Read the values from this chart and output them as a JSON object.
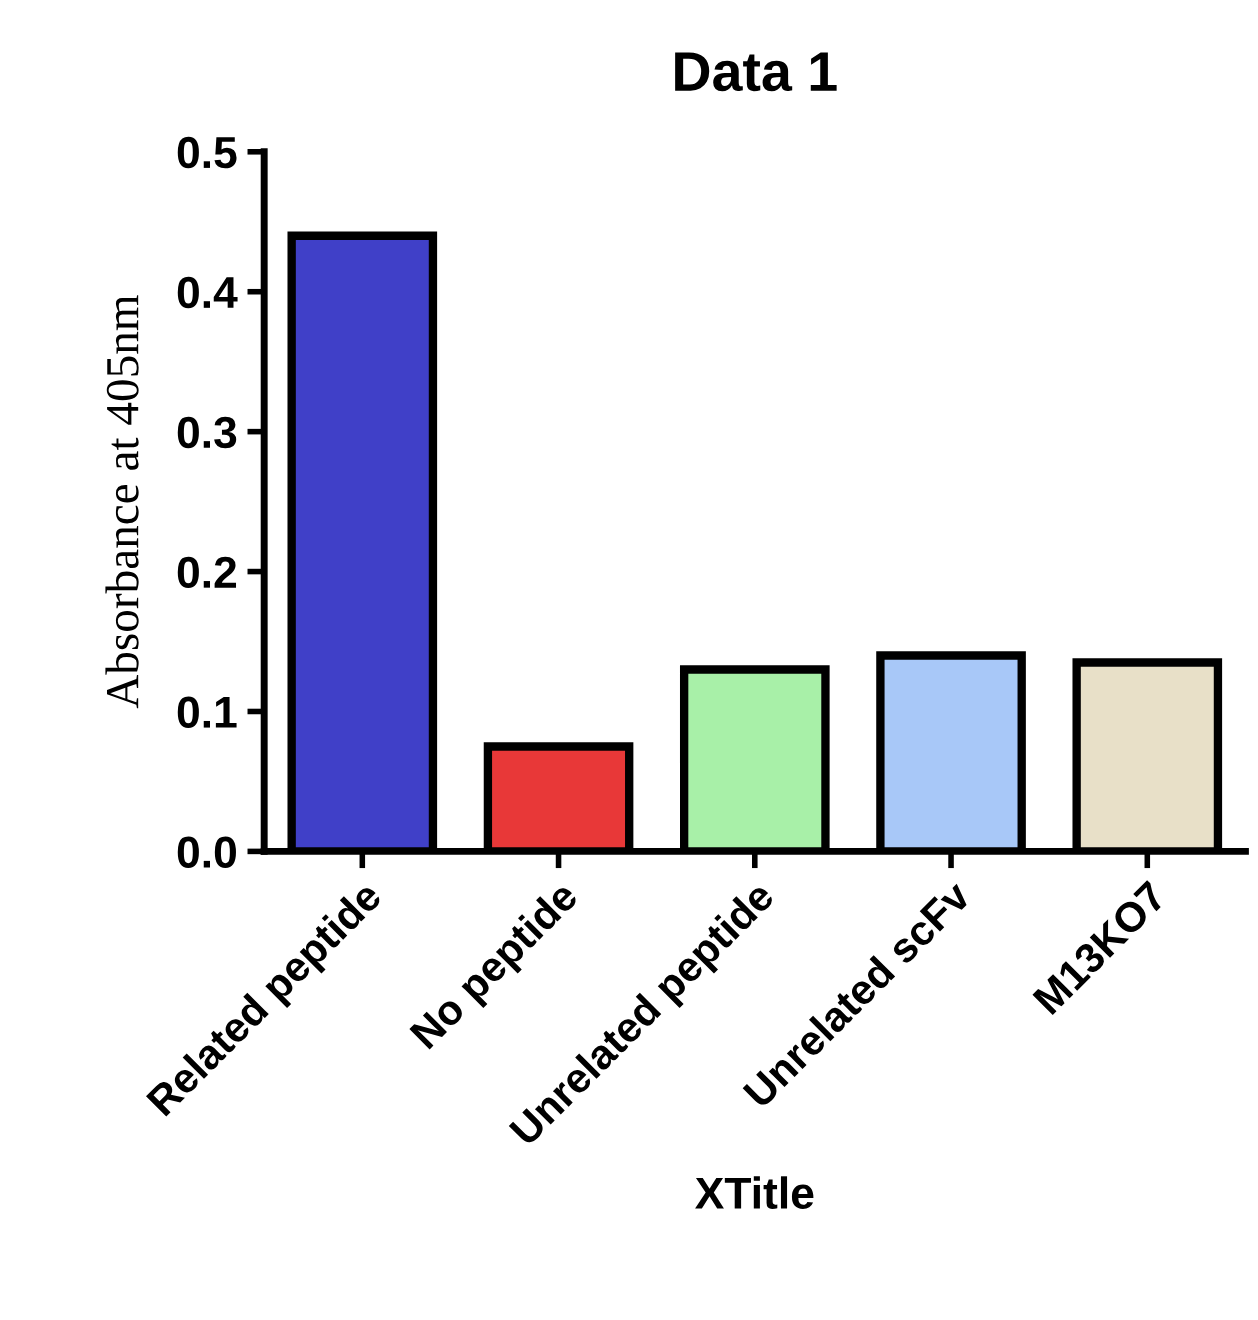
{
  "chart_data": {
    "type": "bar",
    "title": "Data 1",
    "xlabel": "XTitle",
    "ylabel": "Absorbance at 405nm",
    "categories": [
      "Related peptide",
      "No peptide",
      "Unrelated peptide",
      "Unrelated scFv",
      "M13KO7"
    ],
    "values": [
      0.44,
      0.075,
      0.13,
      0.14,
      0.135
    ],
    "colors": [
      "#4040c8",
      "#e83838",
      "#a8f0a8",
      "#a8c8f8",
      "#e8e0c8"
    ],
    "ylim": [
      0,
      0.5
    ],
    "yticks": [
      {
        "value": 0,
        "label": "0.0"
      },
      {
        "value": 0.1,
        "label": "0.1"
      },
      {
        "value": 0.2,
        "label": "0.2"
      },
      {
        "value": 0.3,
        "label": "0.3"
      },
      {
        "value": 0.4,
        "label": "0.4"
      },
      {
        "value": 0.5,
        "label": "0.5"
      }
    ],
    "grid": false,
    "legend": false
  }
}
